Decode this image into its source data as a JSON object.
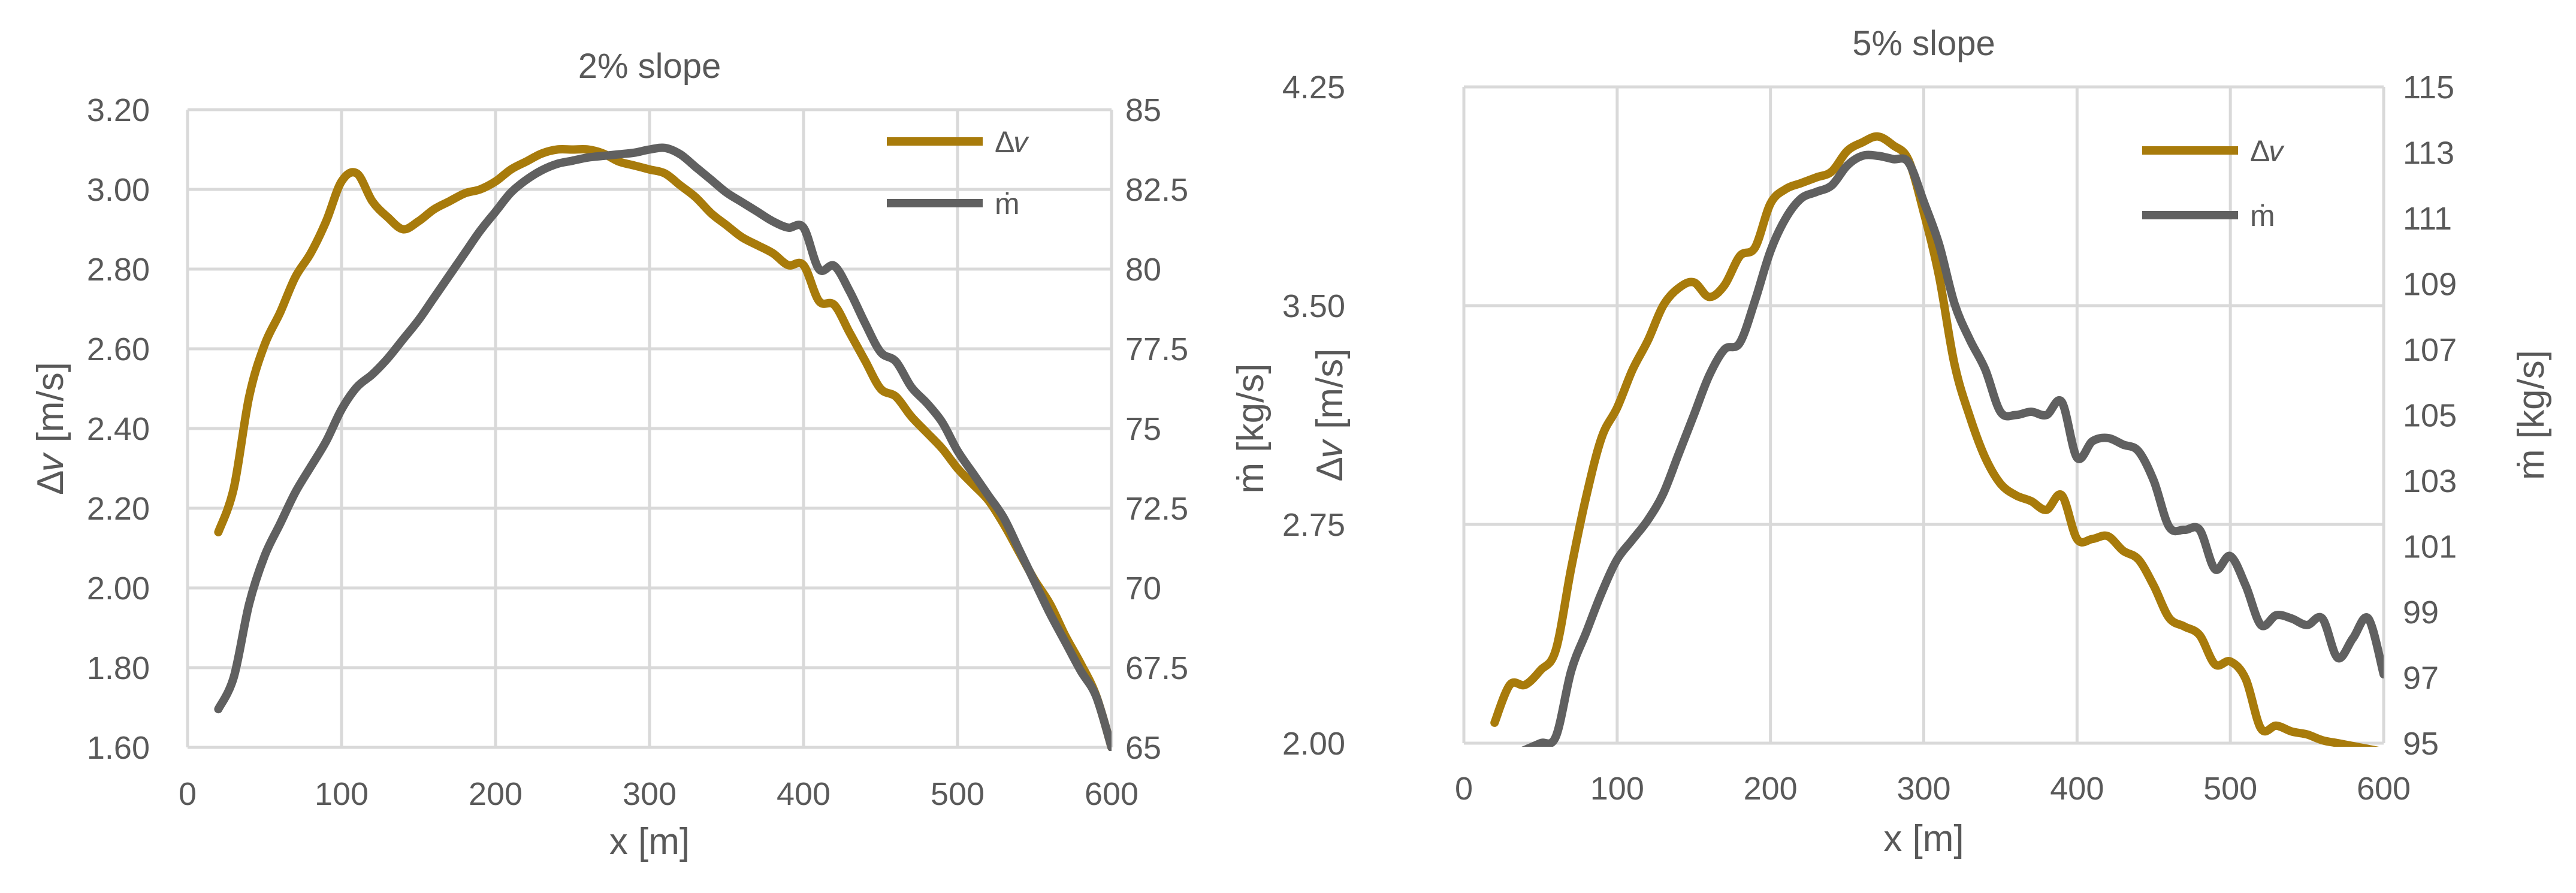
{
  "chart_data": [
    {
      "type": "line",
      "title": "2% slope",
      "xlabel": "x [m]",
      "ylabel": "Δ𝑣 [m/s]",
      "y2label": "ṁ [kg/s]",
      "xlim": [
        0,
        600
      ],
      "ylim": [
        1.6,
        3.2
      ],
      "y2lim": [
        65,
        85
      ],
      "xticks": [
        0,
        100,
        200,
        300,
        400,
        500,
        600
      ],
      "yticks": [
        "1.60",
        "1.80",
        "2.00",
        "2.20",
        "2.40",
        "2.60",
        "2.80",
        "3.00",
        "3.20"
      ],
      "y2ticks": [
        "65",
        "67.5",
        "70",
        "72.5",
        "75",
        "77.5",
        "80",
        "82.5",
        "85"
      ],
      "grid": true,
      "legend": "top-right",
      "series": [
        {
          "name": "Δ𝑣",
          "axis": "left",
          "color": "#a87b0b",
          "x": [
            20,
            30,
            40,
            50,
            60,
            70,
            80,
            90,
            100,
            110,
            120,
            130,
            140,
            150,
            160,
            170,
            180,
            190,
            200,
            210,
            220,
            230,
            240,
            250,
            260,
            270,
            280,
            290,
            300,
            310,
            320,
            330,
            340,
            350,
            360,
            370,
            380,
            390,
            400,
            410,
            420,
            430,
            440,
            450,
            460,
            470,
            480,
            490,
            500,
            510,
            520,
            530,
            540,
            550,
            560,
            570,
            580,
            590,
            600
          ],
          "values": [
            2.14,
            2.25,
            2.48,
            2.61,
            2.69,
            2.78,
            2.84,
            2.92,
            3.02,
            3.04,
            2.97,
            2.93,
            2.9,
            2.92,
            2.95,
            2.97,
            2.99,
            3.0,
            3.02,
            3.05,
            3.07,
            3.09,
            3.1,
            3.1,
            3.1,
            3.09,
            3.07,
            3.06,
            3.05,
            3.04,
            3.01,
            2.98,
            2.94,
            2.91,
            2.88,
            2.86,
            2.84,
            2.81,
            2.81,
            2.72,
            2.71,
            2.64,
            2.57,
            2.5,
            2.48,
            2.43,
            2.39,
            2.35,
            2.3,
            2.26,
            2.22,
            2.16,
            2.09,
            2.02,
            1.96,
            1.88,
            1.81,
            1.73,
            1.6
          ]
        },
        {
          "name": "ṁ",
          "axis": "right",
          "color": "#606060",
          "x": [
            20,
            30,
            40,
            50,
            60,
            70,
            80,
            90,
            100,
            110,
            120,
            130,
            140,
            150,
            160,
            170,
            180,
            190,
            200,
            210,
            220,
            230,
            240,
            250,
            260,
            270,
            280,
            290,
            300,
            310,
            320,
            330,
            340,
            350,
            360,
            370,
            380,
            390,
            400,
            410,
            420,
            430,
            440,
            450,
            460,
            470,
            480,
            490,
            500,
            510,
            520,
            530,
            540,
            550,
            560,
            570,
            580,
            590,
            600
          ],
          "values": [
            66.2,
            67.2,
            69.5,
            71.0,
            72.0,
            73.0,
            73.8,
            74.6,
            75.6,
            76.3,
            76.7,
            77.2,
            77.8,
            78.4,
            79.1,
            79.8,
            80.5,
            81.2,
            81.8,
            82.4,
            82.8,
            83.1,
            83.3,
            83.4,
            83.5,
            83.55,
            83.6,
            83.65,
            83.75,
            83.8,
            83.6,
            83.2,
            82.8,
            82.4,
            82.1,
            81.8,
            81.5,
            81.3,
            81.3,
            80.0,
            80.1,
            79.3,
            78.3,
            77.4,
            77.1,
            76.3,
            75.8,
            75.2,
            74.3,
            73.6,
            72.9,
            72.2,
            71.2,
            70.2,
            69.2,
            68.3,
            67.4,
            66.6,
            65.0
          ]
        }
      ]
    },
    {
      "type": "line",
      "title": "5% slope",
      "xlabel": "x [m]",
      "ylabel": "Δ𝑣 [m/s]",
      "y2label": "ṁ [kg/s]",
      "xlim": [
        0,
        600
      ],
      "ylim": [
        2.0,
        4.25
      ],
      "y2lim": [
        95,
        115
      ],
      "xticks": [
        0,
        100,
        200,
        300,
        400,
        500,
        600
      ],
      "yticks": [
        "2.00",
        "2.75",
        "3.50",
        "4.25"
      ],
      "y2ticks": [
        "95",
        "97",
        "99",
        "101",
        "103",
        "105",
        "107",
        "109",
        "111",
        "113",
        "115"
      ],
      "grid": true,
      "legend": "top-right",
      "series": [
        {
          "name": "Δ𝑣",
          "axis": "left",
          "color": "#a87b0b",
          "x": [
            20,
            30,
            40,
            50,
            60,
            70,
            80,
            90,
            100,
            110,
            120,
            130,
            140,
            150,
            160,
            170,
            180,
            190,
            200,
            210,
            220,
            230,
            240,
            250,
            260,
            270,
            280,
            290,
            300,
            310,
            320,
            330,
            340,
            350,
            360,
            370,
            380,
            390,
            400,
            410,
            420,
            430,
            440,
            450,
            460,
            470,
            480,
            490,
            500,
            510,
            520,
            530,
            540,
            550,
            560,
            570,
            580,
            590,
            600
          ],
          "values": [
            2.07,
            2.2,
            2.2,
            2.25,
            2.32,
            2.6,
            2.85,
            3.05,
            3.15,
            3.28,
            3.38,
            3.5,
            3.56,
            3.58,
            3.53,
            3.57,
            3.67,
            3.7,
            3.85,
            3.9,
            3.92,
            3.94,
            3.96,
            4.03,
            4.06,
            4.08,
            4.05,
            4.0,
            3.82,
            3.6,
            3.3,
            3.12,
            2.98,
            2.89,
            2.85,
            2.83,
            2.8,
            2.85,
            2.7,
            2.7,
            2.71,
            2.66,
            2.63,
            2.54,
            2.43,
            2.4,
            2.37,
            2.27,
            2.28,
            2.22,
            2.05,
            2.06,
            2.04,
            2.03,
            2.01,
            2.0,
            1.99,
            1.98,
            1.97
          ]
        },
        {
          "name": "ṁ",
          "axis": "right",
          "color": "#606060",
          "x": [
            20,
            30,
            40,
            50,
            60,
            70,
            80,
            90,
            100,
            110,
            120,
            130,
            140,
            150,
            160,
            170,
            180,
            190,
            200,
            210,
            220,
            230,
            240,
            250,
            260,
            270,
            280,
            290,
            300,
            310,
            320,
            330,
            340,
            350,
            360,
            370,
            380,
            390,
            400,
            410,
            420,
            430,
            440,
            450,
            460,
            470,
            480,
            490,
            500,
            510,
            520,
            530,
            540,
            550,
            560,
            570,
            580,
            590,
            600
          ],
          "values": [
            94.4,
            94.6,
            94.8,
            95.0,
            95.2,
            97.2,
            98.4,
            99.6,
            100.6,
            101.2,
            101.8,
            102.6,
            103.8,
            105.0,
            106.2,
            107.0,
            107.2,
            108.5,
            110.0,
            111.0,
            111.6,
            111.8,
            112.0,
            112.6,
            112.9,
            112.9,
            112.8,
            112.7,
            111.5,
            110.2,
            108.4,
            107.3,
            106.4,
            105.1,
            105.0,
            105.1,
            105.0,
            105.4,
            103.7,
            104.2,
            104.3,
            104.1,
            103.9,
            103.0,
            101.6,
            101.5,
            101.5,
            100.3,
            100.7,
            99.8,
            98.6,
            98.9,
            98.8,
            98.6,
            98.8,
            97.6,
            98.2,
            98.8,
            97.1
          ]
        }
      ]
    }
  ]
}
